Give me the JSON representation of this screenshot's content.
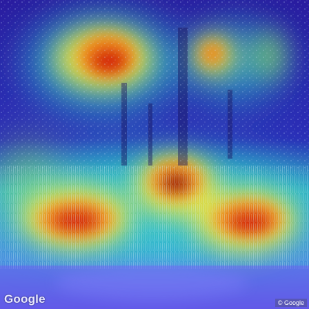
{
  "image": {
    "kind": "Street-level photo (vegetation, trees and grasses) overlaid with a jet-colormap attention heatmap",
    "colormap": [
      "#2a1aa8",
      "#2f6bd8",
      "#2ec7c9",
      "#8ee05a",
      "#f3e23a",
      "#f08a1c",
      "#d62a10",
      "#a0130b"
    ]
  },
  "watermark": {
    "logo_text": "Google",
    "copyright_text": "© Google"
  }
}
